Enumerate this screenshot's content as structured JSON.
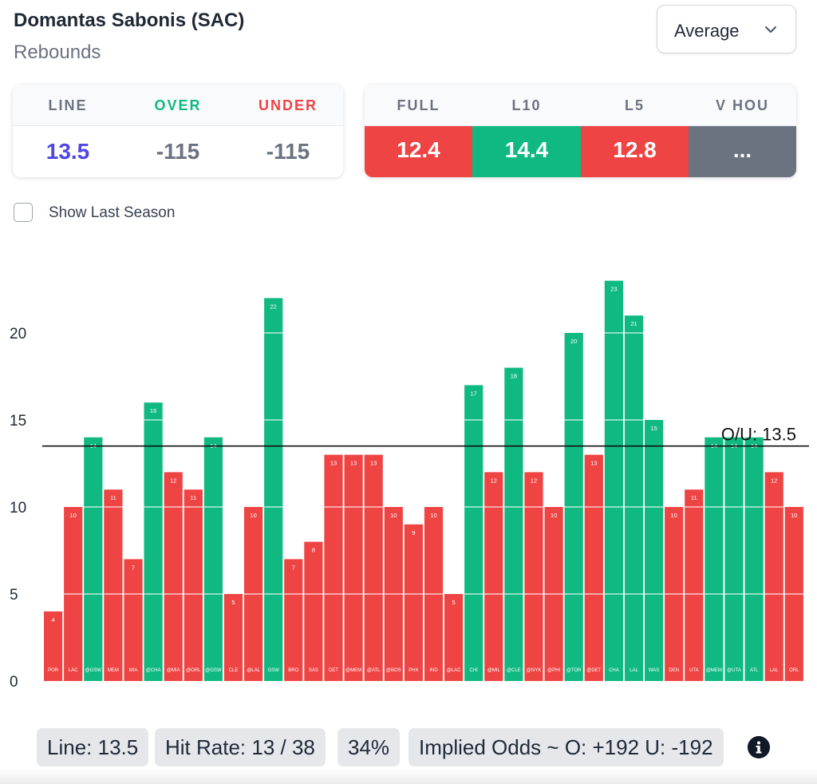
{
  "header": {
    "player": "Domantas Sabonis (SAC)",
    "stat": "Rebounds"
  },
  "dropdown": {
    "selected": "Average"
  },
  "line_card": {
    "headers": [
      "LINE",
      "OVER",
      "UNDER"
    ],
    "values": [
      "13.5",
      "-115",
      "-115"
    ]
  },
  "splits": {
    "headers": [
      "FULL",
      "L10",
      "L5",
      "V HOU"
    ],
    "values": [
      "12.4",
      "14.4",
      "12.8",
      "..."
    ]
  },
  "toggle": {
    "label": "Show Last Season",
    "checked": false
  },
  "footer": {
    "line": "Line: 13.5",
    "hit_rate": "Hit Rate: 13 / 38",
    "pct": "34%",
    "odds": "Implied Odds ~ O: +192 U: -192"
  },
  "colors": {
    "over": "#10b981",
    "under": "#ef4444",
    "neutral": "#6b7280",
    "line_value": "#4f46e5"
  },
  "chart_data": {
    "type": "bar",
    "categories": [
      "POR",
      "LAC",
      "@GSW",
      "MEM",
      "MIA",
      "@CHA",
      "@MIA",
      "@ORL",
      "@GSW",
      "CLE",
      "@LAL",
      "GSW",
      "BRO",
      "SAS",
      "DET",
      "@MEM",
      "@ATL",
      "@BOS",
      "PHX",
      "IND",
      "@LAC",
      "CHI",
      "@MIL",
      "@CLE",
      "@NYK",
      "@PHI",
      "@TOR",
      "@DET",
      "CHA",
      "LAL",
      "WAS",
      "DEN",
      "UTA",
      "@MEM",
      "@UTA",
      "ATL",
      "LAL",
      "ORL"
    ],
    "values": [
      4,
      10,
      14,
      11,
      7,
      16,
      12,
      11,
      14,
      5,
      10,
      22,
      7,
      8,
      13,
      13,
      13,
      10,
      9,
      10,
      5,
      17,
      12,
      18,
      12,
      10,
      20,
      13,
      23,
      21,
      15,
      10,
      11,
      14,
      14,
      14,
      12,
      10
    ],
    "ylim": [
      0,
      24
    ],
    "yticks": [
      0,
      5,
      10,
      15,
      20
    ],
    "line": {
      "value": 13.5,
      "label": "O/U: 13.5"
    },
    "grid": false
  }
}
